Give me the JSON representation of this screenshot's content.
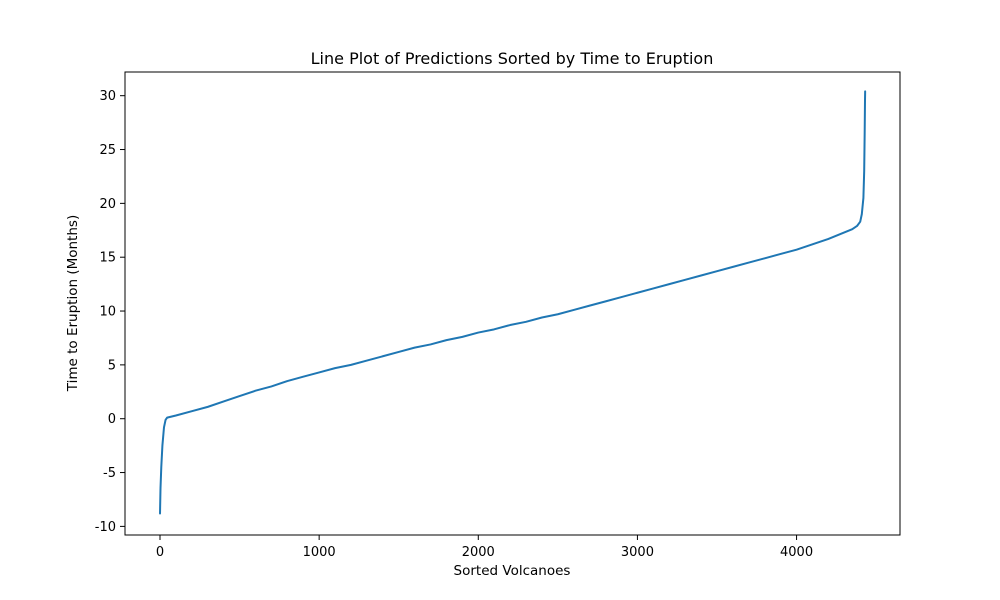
{
  "chart_data": {
    "type": "line",
    "title": "Line Plot of Predictions Sorted by Time to Eruption",
    "xlabel": "Sorted Volcanoes",
    "ylabel": "Time to Eruption (Months)",
    "xlim": [
      -220,
      4650
    ],
    "ylim": [
      -10.8,
      32.2
    ],
    "x_ticks": [
      0,
      1000,
      2000,
      3000,
      4000
    ],
    "y_ticks": [
      -10,
      -5,
      0,
      5,
      10,
      15,
      20,
      25,
      30
    ],
    "grid": false,
    "series": [
      {
        "color": "#1f77b4",
        "x": [
          0,
          3,
          8,
          15,
          25,
          35,
          45,
          100,
          200,
          300,
          400,
          500,
          600,
          700,
          800,
          900,
          1000,
          1100,
          1200,
          1300,
          1400,
          1500,
          1600,
          1700,
          1800,
          1900,
          2000,
          2100,
          2200,
          2300,
          2400,
          2500,
          2600,
          2700,
          2800,
          2900,
          3000,
          3100,
          3200,
          3300,
          3400,
          3500,
          3600,
          3700,
          3800,
          3900,
          4000,
          4100,
          4200,
          4300,
          4350,
          4380,
          4400,
          4410,
          4420,
          4425,
          4428,
          4430,
          4431
        ],
        "y": [
          -8.8,
          -6.5,
          -4.5,
          -2.5,
          -0.8,
          -0.1,
          0.1,
          0.3,
          0.7,
          1.1,
          1.6,
          2.1,
          2.6,
          3.0,
          3.5,
          3.9,
          4.3,
          4.7,
          5.0,
          5.4,
          5.8,
          6.2,
          6.6,
          6.9,
          7.3,
          7.6,
          8.0,
          8.3,
          8.7,
          9.0,
          9.4,
          9.7,
          10.1,
          10.5,
          10.9,
          11.3,
          11.7,
          12.1,
          12.5,
          12.9,
          13.3,
          13.7,
          14.1,
          14.5,
          14.9,
          15.3,
          15.7,
          16.2,
          16.7,
          17.3,
          17.6,
          17.9,
          18.3,
          19.0,
          20.5,
          23.0,
          26.5,
          29.5,
          30.4
        ]
      }
    ]
  }
}
